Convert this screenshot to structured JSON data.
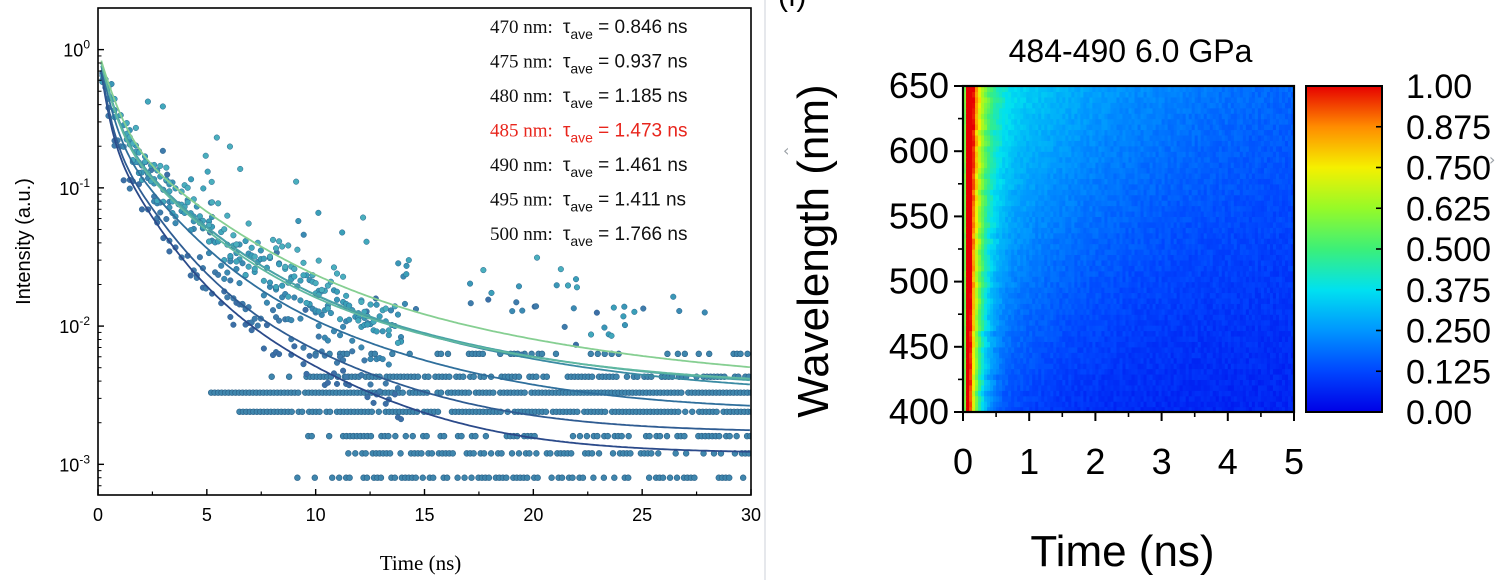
{
  "chart_data": [
    {
      "type": "scatter",
      "title": "",
      "xlabel": "Time (ns)",
      "ylabel": "Intensity (a.u.)",
      "xlim": [
        0,
        30
      ],
      "ylim": [
        0.0006,
        2
      ],
      "yscale": "log",
      "grid": false,
      "x_ticks": [
        "0",
        "5",
        "10",
        "15",
        "20",
        "25",
        "30"
      ],
      "x_tick_values": [
        0,
        5,
        10,
        15,
        20,
        25,
        30
      ],
      "y_ticks": [
        {
          "base": "10",
          "exp": "0",
          "value": 1
        },
        {
          "base": "10",
          "exp": "-1",
          "value": 0.1
        },
        {
          "base": "10",
          "exp": "-2",
          "value": 0.01
        },
        {
          "base": "10",
          "exp": "-3",
          "value": 0.001
        }
      ],
      "legend_placement": "top-right",
      "legend": [
        {
          "wavelength": "470 nm:",
          "tau": "τ",
          "sub": "ave",
          "value": " = 0.846 ns",
          "highlight": false
        },
        {
          "wavelength": "475 nm:",
          "tau": "τ",
          "sub": "ave",
          "value": " = 0.937 ns",
          "highlight": false
        },
        {
          "wavelength": "480 nm:",
          "tau": "τ",
          "sub": "ave",
          "value": " = 1.185 ns",
          "highlight": false
        },
        {
          "wavelength": "485 nm:",
          "tau": "τ",
          "sub": "ave",
          "value": " = 1.473 ns",
          "highlight": true
        },
        {
          "wavelength": "490 nm:",
          "tau": "τ",
          "sub": "ave",
          "value": " = 1.461 ns",
          "highlight": false
        },
        {
          "wavelength": "495 nm:",
          "tau": "τ",
          "sub": "ave",
          "value": " = 1.411 ns",
          "highlight": false
        },
        {
          "wavelength": "500 nm:",
          "tau": "τ",
          "sub": "ave",
          "value": " = 1.766 ns",
          "highlight": false
        }
      ],
      "series": [
        {
          "tau": 0.846,
          "baseline": 0.0012,
          "fit_color": "#2b4a8a",
          "point_color": "#3d6ea6"
        },
        {
          "tau": 0.937,
          "baseline": 0.0017,
          "fit_color": "#2f5c92",
          "point_color": "#3f7bab"
        },
        {
          "tau": 1.185,
          "baseline": 0.0024,
          "fit_color": "#2f6f9c",
          "point_color": "#3b8ab2"
        },
        {
          "tau": 1.473,
          "baseline": 0.0031,
          "fit_color": "#3a8ba3",
          "point_color": "#3a97b6"
        },
        {
          "tau": 1.461,
          "baseline": 0.0034,
          "fit_color": "#4aa3a6",
          "point_color": "#3a9fb8"
        },
        {
          "tau": 1.411,
          "baseline": 0.0036,
          "fit_color": "#5fb8a0",
          "point_color": "#41a8bb"
        },
        {
          "tau": 1.766,
          "baseline": 0.0037,
          "fit_color": "#86cf92",
          "point_color": "#4aafbd"
        }
      ],
      "floor_levels": [
        0.0008,
        0.0012,
        0.0016,
        0.0024,
        0.0033,
        0.0043,
        0.0063
      ]
    },
    {
      "type": "heatmap",
      "title": "484-490  6.0 GPa",
      "xlabel": "Time (ns)",
      "ylabel": "Wavelength (nm)",
      "xlim": [
        0,
        5
      ],
      "ylim": [
        400,
        650
      ],
      "x_ticks": [
        "0",
        "1",
        "2",
        "3",
        "4",
        "5"
      ],
      "x_tick_values": [
        0,
        1,
        2,
        3,
        4,
        5
      ],
      "y_ticks": [
        "400",
        "450",
        "500",
        "550",
        "600",
        "650"
      ],
      "y_tick_values": [
        400,
        450,
        500,
        550,
        600,
        650
      ],
      "colorbar": {
        "range": [
          0,
          1
        ],
        "ticks": [
          "0.00",
          "0.125",
          "0.250",
          "0.375",
          "0.500",
          "0.625",
          "0.750",
          "0.875",
          "1.00"
        ],
        "tick_values": [
          0,
          0.125,
          0.25,
          0.375,
          0.5,
          0.625,
          0.75,
          0.875,
          1.0
        ]
      },
      "panel_label_fragment": "(f)"
    }
  ]
}
